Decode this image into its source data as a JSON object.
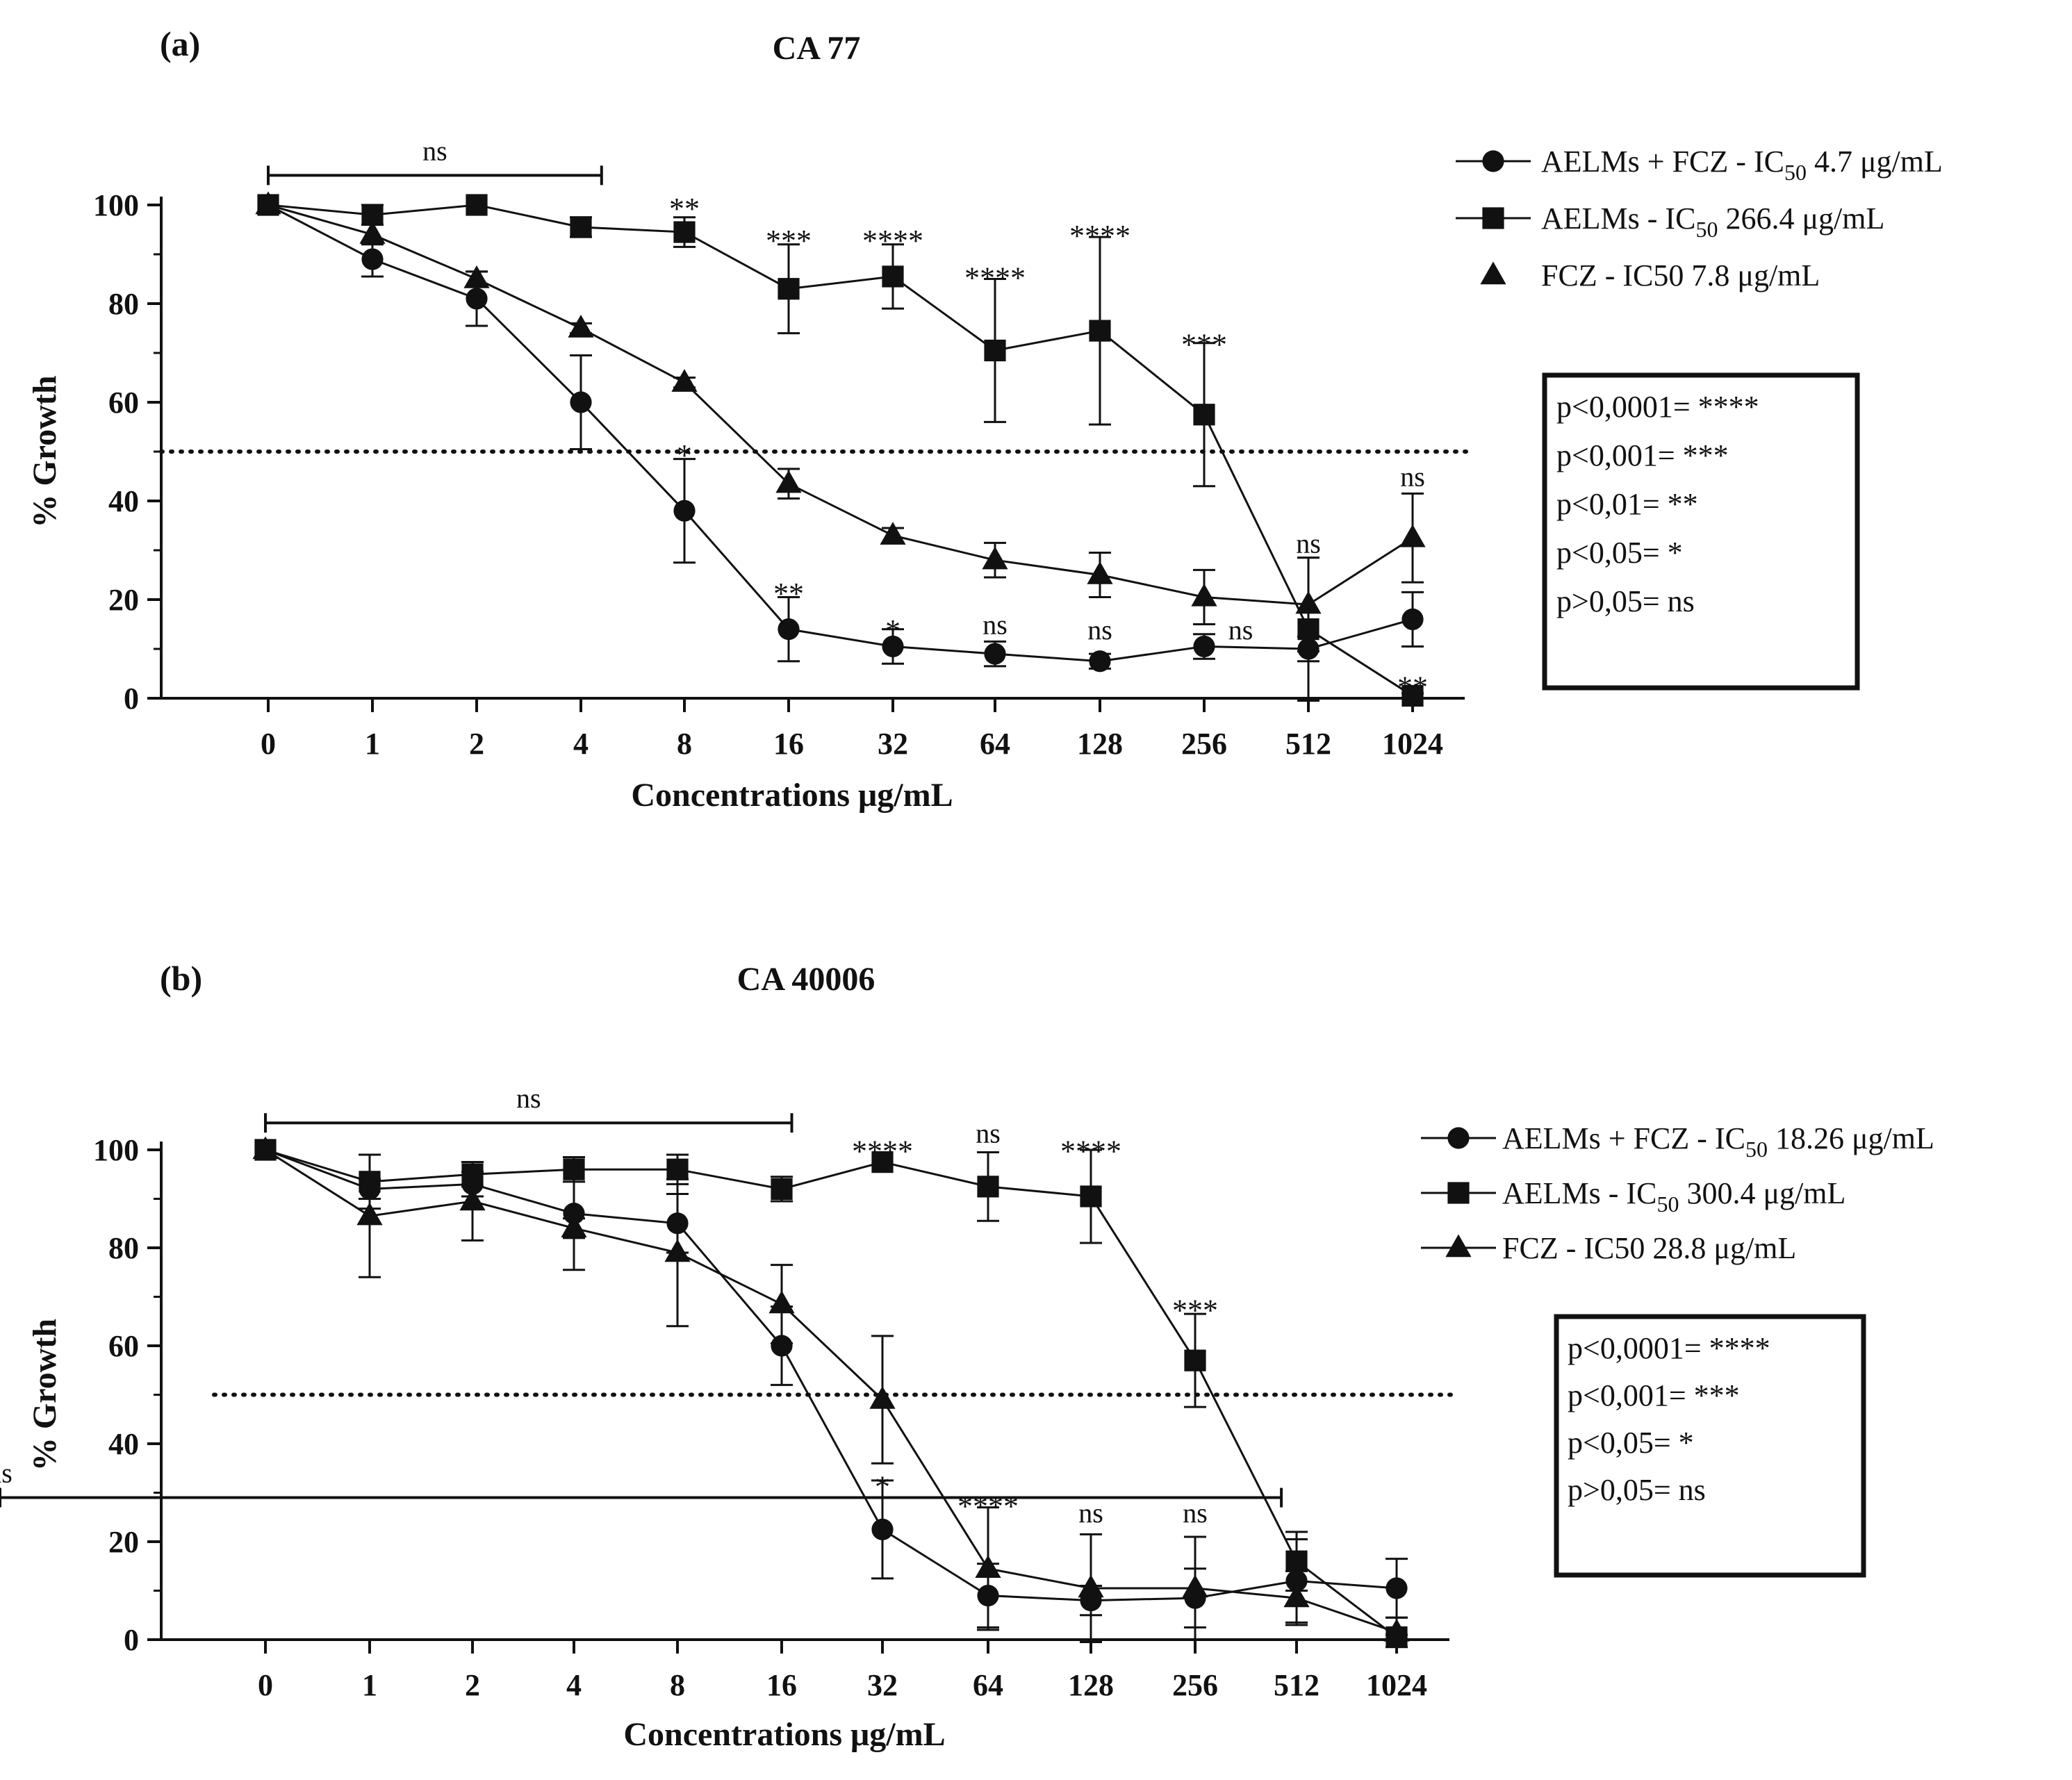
{
  "figure": {
    "background": "#ffffff",
    "ink_color": "#111111"
  },
  "chart_data": [
    {
      "type": "line",
      "panel_label": "(a)",
      "title": "CA 77",
      "xlabel": "Concentrations μg/mL",
      "ylabel": "% Growth",
      "categories": [
        "0",
        "1",
        "2",
        "4",
        "8",
        "16",
        "32",
        "64",
        "128",
        "256",
        "512",
        "1024"
      ],
      "ylim": [
        0,
        100
      ],
      "yticks": [
        "0",
        "20",
        "40",
        "60",
        "80",
        "100"
      ],
      "threshold": 50,
      "series": [
        {
          "name": "AELMs + FCZ",
          "label_prefix": "AELMs + FCZ - IC",
          "label_sub": "50",
          "label_suffix": " 4.7 μg/mL",
          "marker": "circle",
          "values": [
            100,
            89,
            81,
            60,
            38,
            14,
            10.5,
            9,
            7.5,
            10.5,
            10,
            16
          ],
          "errors": [
            0,
            3.5,
            5.5,
            9.5,
            10.5,
            6.5,
            3.5,
            2.5,
            1.5,
            2.5,
            2.5,
            5.5
          ]
        },
        {
          "name": "AELMs",
          "label_prefix": "AELMs - IC",
          "label_sub": "50",
          "label_suffix": " 266.4 μg/mL",
          "marker": "square",
          "values": [
            100,
            98,
            100,
            95.5,
            94.5,
            83,
            85.5,
            70.5,
            74.5,
            57.5,
            14,
            0.5
          ],
          "errors": [
            0,
            2,
            0,
            2,
            3,
            9,
            6.5,
            14.5,
            19,
            14.5,
            14.5,
            0.5
          ]
        },
        {
          "name": "FCZ",
          "label_prefix": "FCZ - IC50 7.8 μg/mL",
          "label_sub": "",
          "label_suffix": "",
          "marker": "triangle",
          "values": [
            100,
            94,
            85,
            75,
            64,
            43.5,
            33,
            28,
            25,
            20.5,
            19,
            32.5
          ],
          "errors": [
            0,
            2,
            1.5,
            1,
            1,
            3,
            1.5,
            3.5,
            4.5,
            5.5,
            9.5,
            9
          ]
        }
      ],
      "annotations": [
        {
          "text": "ns",
          "type": "bracket",
          "from": 0,
          "to": 3.2,
          "y": 106
        },
        {
          "text": "**",
          "at": 4,
          "y": 100
        },
        {
          "text": "***",
          "at": 5,
          "y": 93.5
        },
        {
          "text": "****",
          "at": 6,
          "y": 93.5
        },
        {
          "text": "****",
          "at": 7,
          "y": 86
        },
        {
          "text": "****",
          "at": 8,
          "y": 94.5
        },
        {
          "text": "***",
          "at": 9,
          "y": 72.5
        },
        {
          "text": "*",
          "at": 4,
          "y": 50
        },
        {
          "text": "**",
          "at": 5,
          "y": 22
        },
        {
          "text": "*",
          "at": 6,
          "y": 14.5
        },
        {
          "text": "ns",
          "at": 7,
          "y": 13
        },
        {
          "text": "ns",
          "at": 8,
          "y": 12
        },
        {
          "text": "ns",
          "at": 9.35,
          "y": 12
        },
        {
          "text": "ns",
          "at": 10,
          "y": 29.5
        },
        {
          "text": "ns",
          "at": 11,
          "y": 43
        },
        {
          "text": "**",
          "at": 11,
          "y": 3
        }
      ],
      "key_box": [
        "p<0,0001= ****",
        "p<0,001= ***",
        "p<0,01= **",
        "p<0,05= *",
        "p>0,05= ns"
      ]
    },
    {
      "type": "line",
      "panel_label": "(b)",
      "title": "CA 40006",
      "xlabel": "Concentrations μg/mL",
      "ylabel": "% Growth",
      "categories": [
        "0",
        "1",
        "2",
        "4",
        "8",
        "16",
        "32",
        "64",
        "128",
        "256",
        "512",
        "1024"
      ],
      "ylim": [
        0,
        100
      ],
      "yticks": [
        "0",
        "20",
        "40",
        "60",
        "80",
        "100"
      ],
      "threshold": 50,
      "series": [
        {
          "name": "AELMs + FCZ",
          "label_prefix": "AELMs + FCZ - IC",
          "label_sub": "50",
          "label_suffix": " 18.26 μg/mL",
          "marker": "circle",
          "values": [
            100,
            92,
            93,
            87,
            85,
            60,
            22.5,
            9,
            8,
            8.5,
            12,
            10.5
          ],
          "errors": [
            0,
            2,
            2.5,
            11.5,
            6,
            8,
            10,
            6.5,
            3,
            6,
            8.5,
            6
          ]
        },
        {
          "name": "AELMs",
          "label_prefix": "AELMs - IC",
          "label_sub": "50",
          "label_suffix": " 300.4 μg/mL",
          "marker": "square",
          "values": [
            100,
            93.5,
            95,
            96,
            96,
            92,
            97.5,
            92.5,
            90.5,
            57,
            16,
            0.5
          ],
          "errors": [
            0,
            5.5,
            2.5,
            2.5,
            3,
            2.5,
            0,
            7,
            9.5,
            9.5,
            6,
            0.5
          ]
        },
        {
          "name": "FCZ",
          "label_prefix": "FCZ - IC50 28.8 μg/mL",
          "label_sub": "",
          "label_suffix": "",
          "marker": "triangle",
          "values": [
            100,
            86.5,
            89.5,
            84,
            79,
            68.5,
            49,
            14.5,
            10.5,
            10.5,
            8.5,
            1.5
          ],
          "errors": [
            0,
            12.5,
            8,
            2,
            15,
            8,
            13,
            12.5,
            11,
            10.5,
            5.5,
            3
          ]
        }
      ],
      "annotations": [
        {
          "text": "ns",
          "type": "bracket",
          "from": 0,
          "to": 5.1,
          "y": 105.5
        },
        {
          "text": "****",
          "at": 6,
          "y": 100.5
        },
        {
          "text": "ns",
          "at": 7,
          "y": 101.5
        },
        {
          "text": "****",
          "at": 8,
          "y": 100.5
        },
        {
          "text": "***",
          "at": 9,
          "y": 68
        },
        {
          "text": "*",
          "at": 6,
          "y": 32
        },
        {
          "text": "****",
          "at": 7,
          "y": 28
        },
        {
          "text": "ns",
          "at": 8,
          "y": 24
        },
        {
          "text": "ns",
          "at": 9,
          "y": 24
        },
        {
          "text": "ns",
          "type": "bracket",
          "from": 9.85,
          "to": 11.05,
          "y": 29
        }
      ],
      "key_box": [
        "p<0,0001= ****",
        "p<0,001= ***",
        "p<0,05= *",
        "p>0,05= ns"
      ]
    }
  ]
}
